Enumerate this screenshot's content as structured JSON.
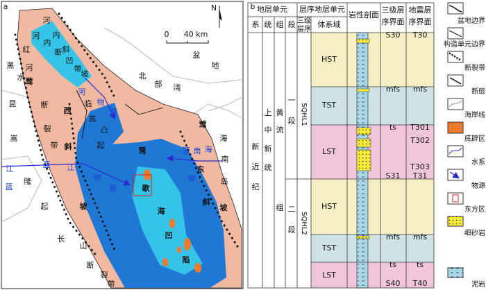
{
  "panel_a": {
    "label": "a",
    "north": "N",
    "scale_zero": "0",
    "scale_length": "40 km",
    "map_labels": [
      "河内斜坡",
      "河内断凹带",
      "红河断裂带",
      "莺西斜坡",
      "黑水",
      "昆嵩隆起",
      "临高凸起",
      "北部湾盆地",
      "河物源",
      "莺歌海凹陷",
      "蓝江物源",
      "蓝江",
      "莺东斜坡",
      "海南岛",
      "南海物源",
      "长山断裂带"
    ]
  },
  "panel_b": {
    "label": "b",
    "header_strat_unit": "地层单元",
    "header_seq_unit": "层序地层单元",
    "header_lithology": "岩性剖面",
    "header_third_surface": "三级层序界面",
    "header_seismic_surface": "地震层序界面",
    "col_system": "系",
    "col_series": "统",
    "col_formation": "组",
    "col_member": "段",
    "col_sequence": "三级层序",
    "col_tract": "体系域",
    "system": "新近纪",
    "series": "上中新统",
    "formation": "黄流组",
    "members": [
      "一段",
      "二段"
    ],
    "sequences": [
      "SQHL1",
      "SQHL2"
    ],
    "systems_tracts": [
      "HST",
      "TST",
      "LST",
      "HST",
      "TST",
      "LST"
    ],
    "third_order_surfaces": [
      "S30",
      "mfs",
      "ts",
      "S31",
      "mfs",
      "ts",
      "S40"
    ],
    "seismic_surfaces": [
      "T30",
      "mfs",
      "T301",
      "T302",
      "T303",
      "T31",
      "mfs",
      "ts",
      "T40"
    ]
  },
  "legend": [
    "盆地边界",
    "构造单元边界",
    "断裂带",
    "断层",
    "海岸线",
    "底辟区",
    "水系",
    "物源",
    "东方区",
    "细砂岩",
    "泥岩"
  ]
}
